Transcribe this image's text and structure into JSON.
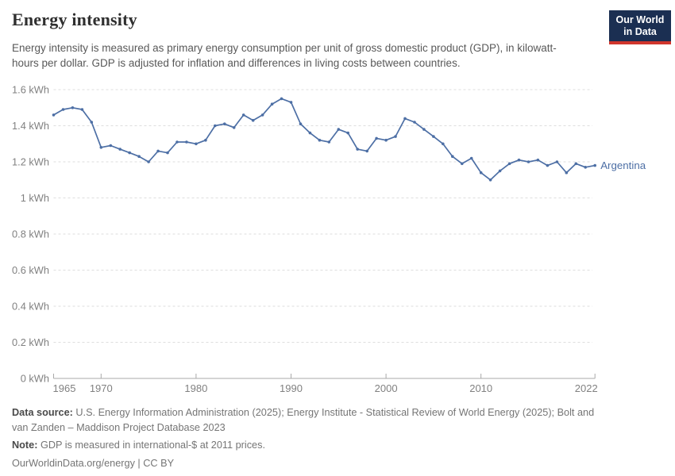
{
  "header": {
    "title": "Energy intensity",
    "logo": {
      "line1": "Our World",
      "line2": "in Data"
    }
  },
  "subtitle": "Energy intensity is measured as primary energy consumption per unit of gross domestic product (GDP), in kilowatt-hours per dollar. GDP is adjusted for inflation and differences in living costs between countries.",
  "chart_data": {
    "type": "line",
    "title": "Energy intensity",
    "unit": "kWh",
    "xlim": [
      1965,
      2022
    ],
    "ylim": [
      0,
      1.6
    ],
    "grid": "horizontal-dashed",
    "legend_position": "end-of-line-label",
    "x_ticks": [
      1965,
      1970,
      1980,
      1990,
      2000,
      2010,
      2022
    ],
    "y_ticks": [
      0,
      0.2,
      0.4,
      0.6,
      0.8,
      1,
      1.2,
      1.4,
      1.6
    ],
    "y_tick_labels": [
      "0 kWh",
      "0.2 kWh",
      "0.4 kWh",
      "0.6 kWh",
      "0.8 kWh",
      "1 kWh",
      "1.2 kWh",
      "1.4 kWh",
      "1.6 kWh"
    ],
    "series": [
      {
        "name": "Argentina",
        "x": [
          1965,
          1966,
          1967,
          1968,
          1969,
          1970,
          1971,
          1972,
          1973,
          1974,
          1975,
          1976,
          1977,
          1978,
          1979,
          1980,
          1981,
          1982,
          1983,
          1984,
          1985,
          1986,
          1987,
          1988,
          1989,
          1990,
          1991,
          1992,
          1993,
          1994,
          1995,
          1996,
          1997,
          1998,
          1999,
          2000,
          2001,
          2002,
          2003,
          2004,
          2005,
          2006,
          2007,
          2008,
          2009,
          2010,
          2011,
          2012,
          2013,
          2014,
          2015,
          2016,
          2017,
          2018,
          2019,
          2020,
          2021,
          2022
        ],
        "values": [
          1.46,
          1.49,
          1.5,
          1.49,
          1.42,
          1.28,
          1.29,
          1.27,
          1.25,
          1.23,
          1.2,
          1.26,
          1.25,
          1.31,
          1.31,
          1.3,
          1.32,
          1.4,
          1.41,
          1.39,
          1.46,
          1.43,
          1.46,
          1.52,
          1.55,
          1.53,
          1.41,
          1.36,
          1.32,
          1.31,
          1.38,
          1.36,
          1.27,
          1.26,
          1.33,
          1.32,
          1.34,
          1.44,
          1.42,
          1.38,
          1.34,
          1.3,
          1.23,
          1.19,
          1.22,
          1.14,
          1.1,
          1.15,
          1.19,
          1.21,
          1.2,
          1.21,
          1.18,
          1.2,
          1.14,
          1.19,
          1.17,
          1.18
        ]
      }
    ],
    "entity_label": "Argentina"
  },
  "footer": {
    "data_source_label": "Data source:",
    "data_source_text": " U.S. Energy Information Administration (2025); Energy Institute - Statistical Review of World Energy (2025); Bolt and van Zanden – Maddison Project Database 2023",
    "note_label": "Note:",
    "note_text": " GDP is measured in international-$ at 2011 prices.",
    "license": "OurWorldinData.org/energy | CC BY"
  },
  "colors": {
    "line": "#4d6fa5",
    "grid": "#dedede",
    "axis": "#a9a9a9",
    "tick_label": "#818181",
    "title": "#2f2f2f",
    "subtitle": "#595959",
    "footer": "#757575",
    "footer_bold": "#4a4a4a",
    "logo_bg": "#1b2f52",
    "logo_red": "#d0362c",
    "logo_text": "#ffffff"
  }
}
